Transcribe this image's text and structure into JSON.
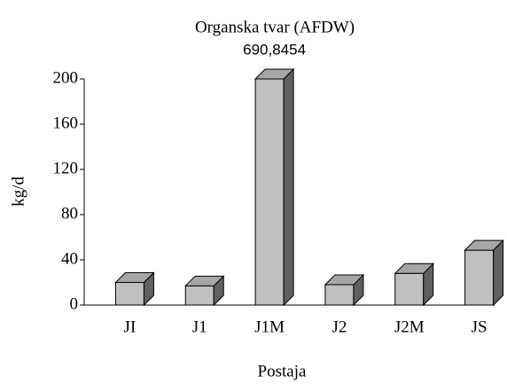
{
  "chart_data": {
    "type": "bar3d",
    "title": "Organska tvar (AFDW)",
    "x_label": "Postaja",
    "y_label": "kg/d",
    "categories": [
      "JI",
      "J1",
      "J1M",
      "J2",
      "J2M",
      "JS"
    ],
    "values": [
      20,
      17,
      690.8454,
      18,
      28,
      48.5
    ],
    "value_labels": [
      null,
      null,
      "690,8454",
      null,
      null,
      null
    ],
    "colors": {
      "front": "#c0c0c0",
      "top": "#a6a6a6",
      "side": "#606060"
    },
    "ylim": [
      0,
      200
    ],
    "yticks": [
      0,
      40,
      80,
      120,
      160,
      200
    ],
    "grid": false
  }
}
